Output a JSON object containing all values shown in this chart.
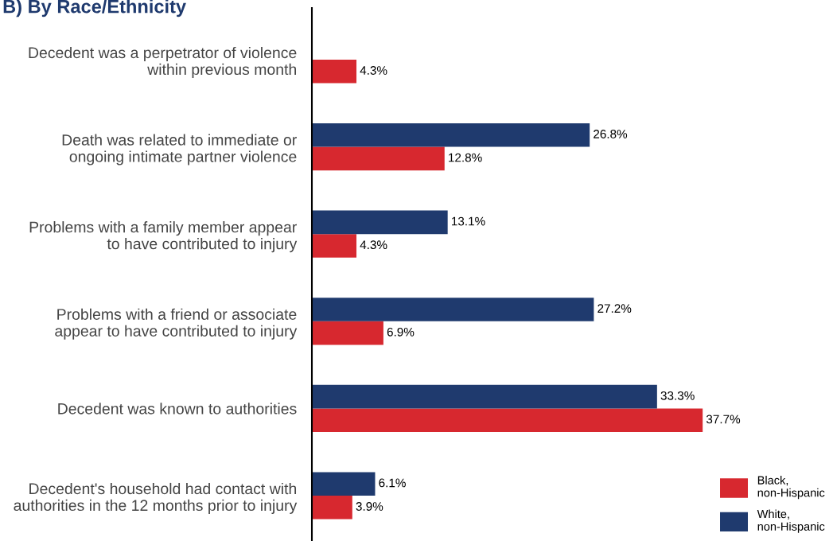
{
  "chart_data": {
    "type": "bar",
    "orientation": "horizontal",
    "title": "B) By Race/Ethnicity",
    "categories": [
      "Decedent was a perpetrator of violence\nwithin previous month",
      "Death was related to immediate or\nongoing intimate partner violence",
      "Problems with a family member appear\nto have contributed to injury",
      "Problems with a friend or associate\nappear to have contributed to injury",
      "Decedent was known to authorities",
      "Decedent's household had contact with\nauthorities in the 12 months prior to injury"
    ],
    "series": [
      {
        "name": "Black,\nnon-Hispanic",
        "color": "#d7282f",
        "values": [
          4.3,
          12.8,
          4.3,
          6.9,
          37.7,
          3.9
        ],
        "value_labels": [
          "4.3%",
          "12.8%",
          "4.3%",
          "6.9%",
          "37.7%",
          "3.9%"
        ]
      },
      {
        "name": "White,\nnon-Hispanic",
        "color": "#1f3a6e",
        "values": [
          null,
          26.8,
          13.1,
          27.2,
          33.3,
          6.1
        ],
        "value_labels": [
          null,
          "26.8%",
          "13.1%",
          "27.2%",
          "33.3%",
          "6.1%"
        ]
      }
    ],
    "tick_labels": "y",
    "grid": false,
    "legend": "bottom right"
  }
}
